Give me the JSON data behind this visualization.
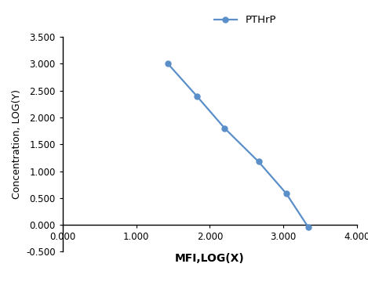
{
  "x": [
    1.431,
    1.826,
    2.204,
    2.663,
    3.037,
    3.338
  ],
  "y": [
    3.0,
    2.394,
    1.796,
    1.176,
    0.588,
    -0.041
  ],
  "line_color": "#5b8fc9",
  "marker_color": "#5b8fc9",
  "marker_style": "o",
  "marker_size": 5,
  "line_width": 1.6,
  "xlabel": "MFI,LOG(X)",
  "ylabel": "Concentration, LOG(Y)",
  "xlim": [
    0.0,
    4.0
  ],
  "ylim": [
    -0.5,
    3.5
  ],
  "xticks": [
    0.0,
    1.0,
    2.0,
    3.0,
    4.0
  ],
  "yticks": [
    -0.5,
    0.0,
    0.5,
    1.0,
    1.5,
    2.0,
    2.5,
    3.0,
    3.5
  ],
  "legend_label": "PTHrP",
  "background_color": "#ffffff",
  "xlabel_fontsize": 10,
  "ylabel_fontsize": 9,
  "tick_fontsize": 8.5,
  "legend_fontsize": 9.5
}
